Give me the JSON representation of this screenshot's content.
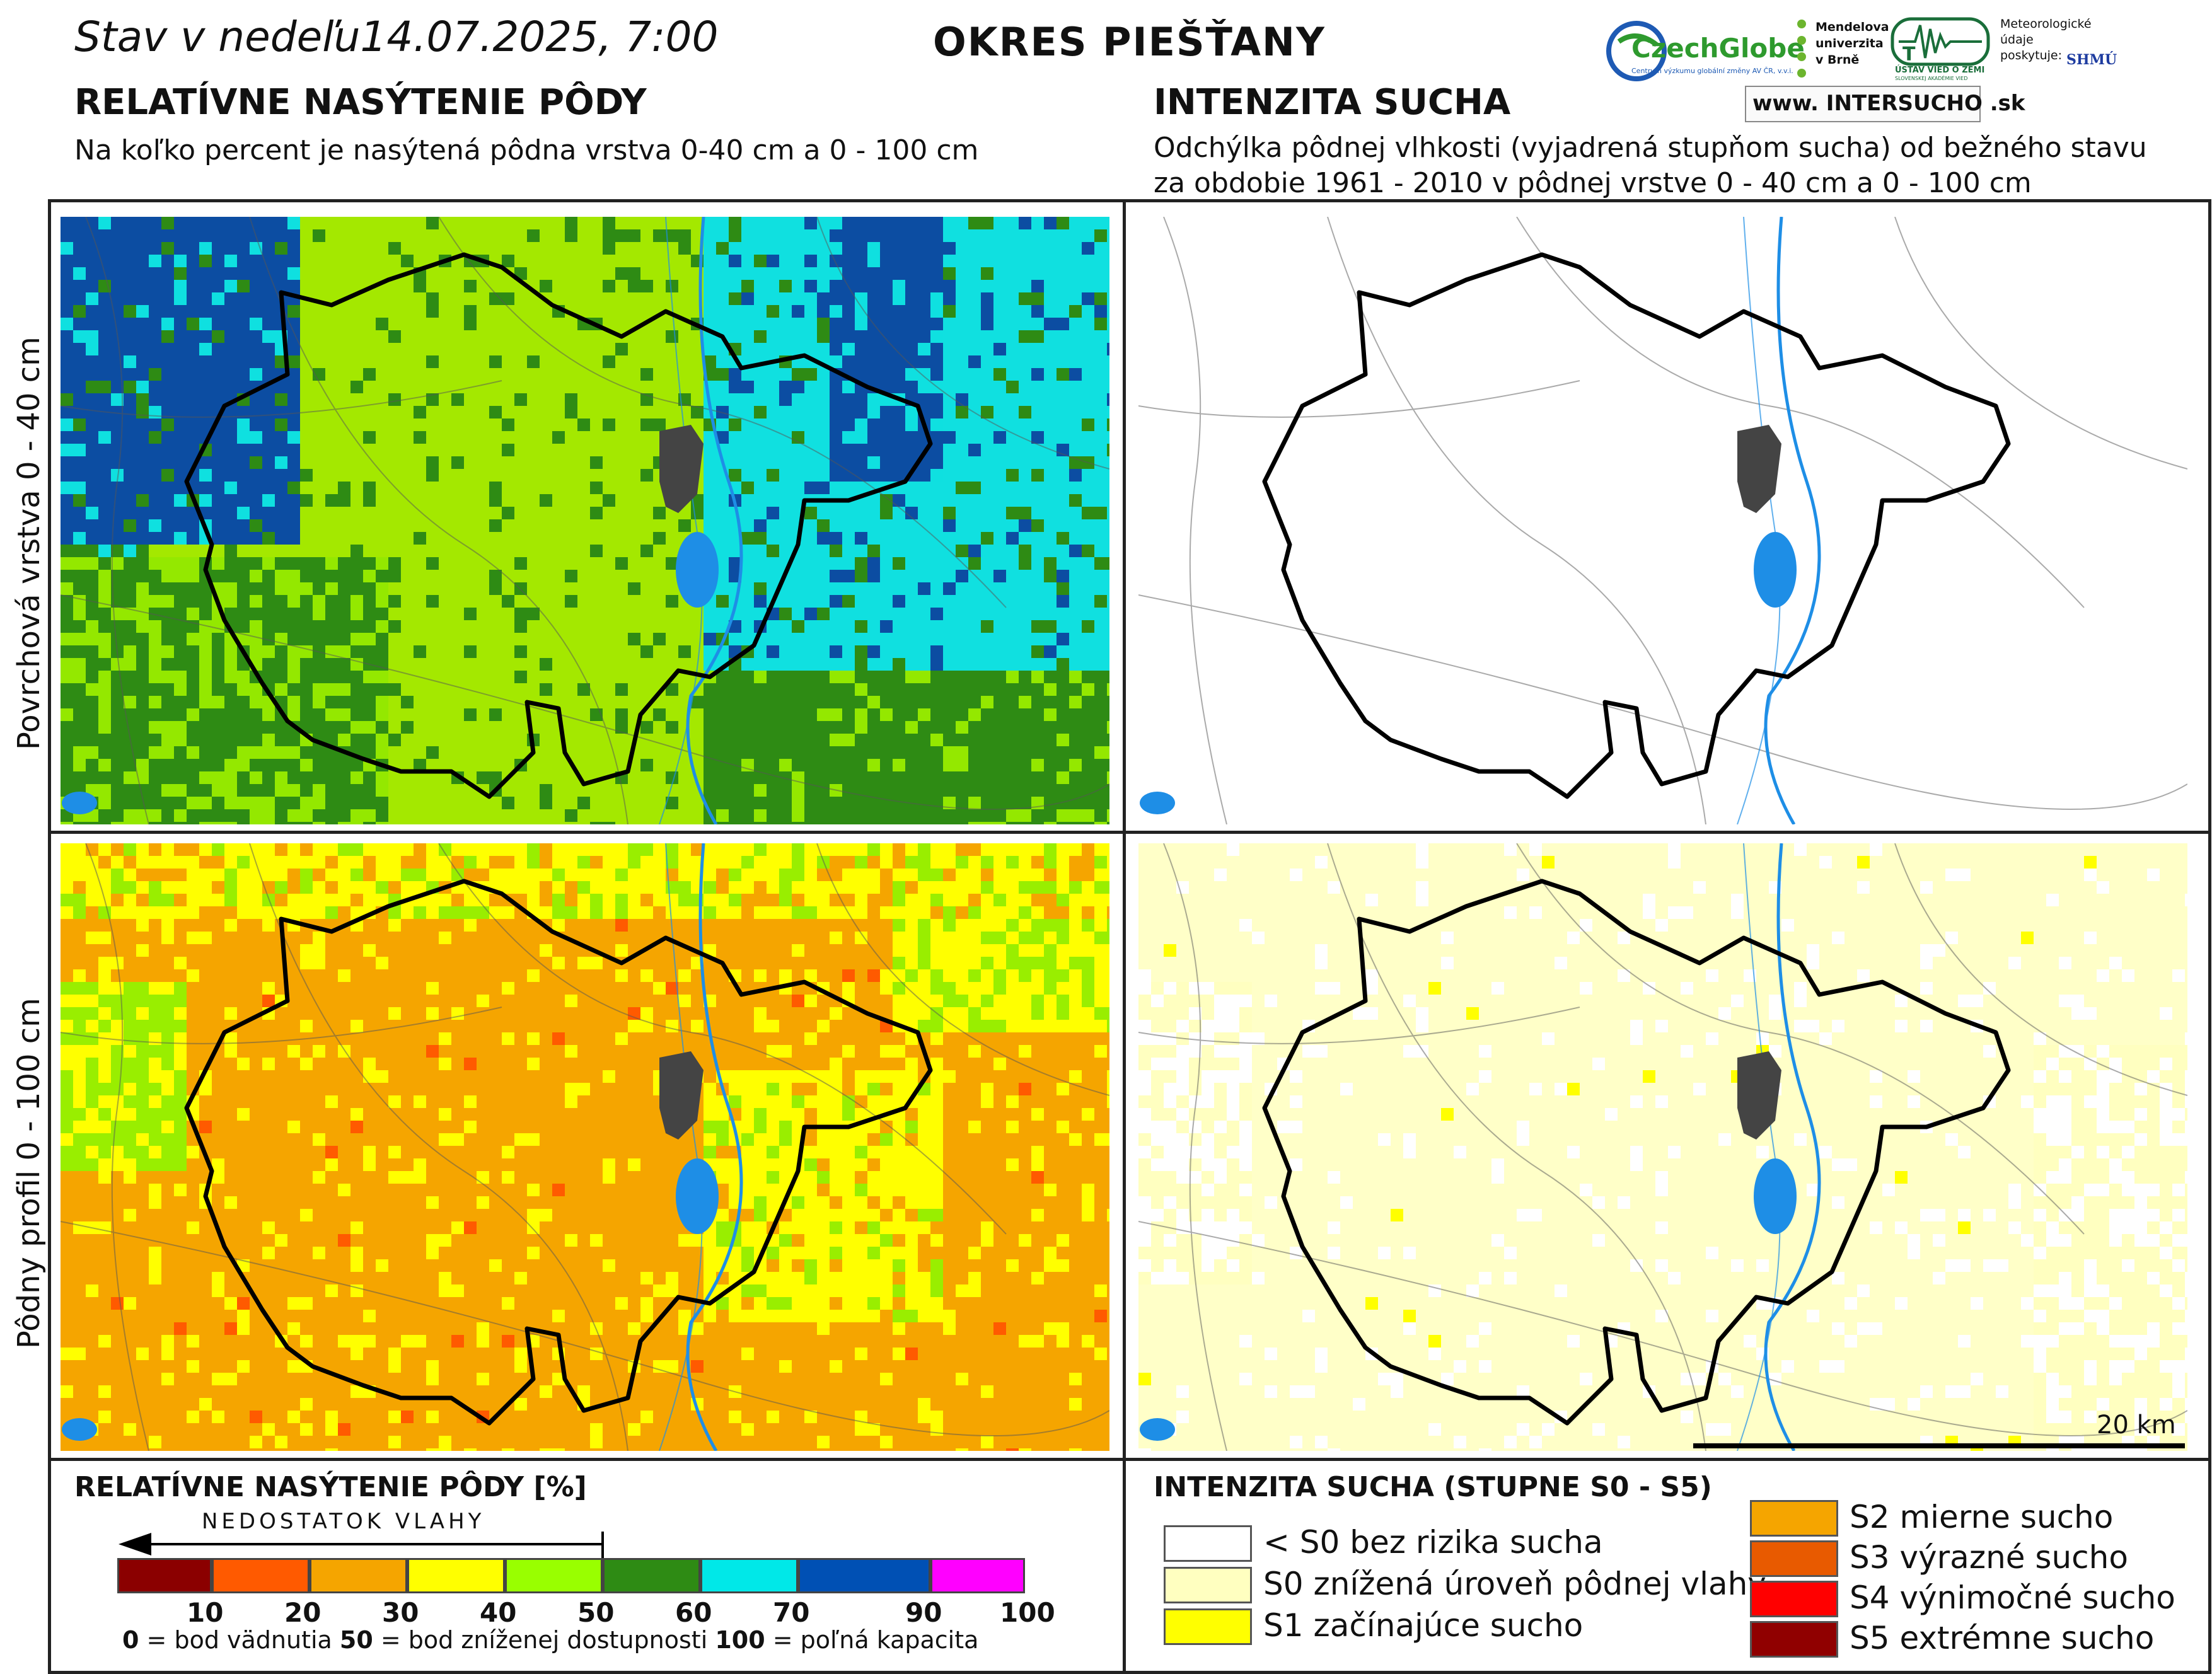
{
  "header": {
    "date_text": "Stav v nedeľu14.07.2025, 7:00",
    "region": "OKRES  PIEŠŤANY"
  },
  "logos": {
    "czechglobe": "CzechGlobe",
    "czechglobe_sub": "Centrum výzkumu globální změny AV ČR, v.v.i.",
    "mendel_1": "Mendelova",
    "mendel_2": "univerzita",
    "mendel_3": "v Brně",
    "uvz": "ÚSTAV VIED O ZEMI",
    "uvz_sub": "SLOVENSKEJ AKADÉMIE VIED",
    "meteo_1": "Meteorologické",
    "meteo_2": "údaje",
    "meteo_3": "poskytuje:",
    "shmu": "SHMÚ",
    "intersucho": "www. INTERSUCHO .sk"
  },
  "left_section": {
    "title": "RELATÍVNE NASÝTENIE PÔDY",
    "subtitle": "Na koľko percent je nasýtená pôdna vrstva 0-40 cm a 0 - 100 cm"
  },
  "right_section": {
    "title": "INTENZITA SUCHA",
    "subtitle_1": "Odchýlka pôdnej vlhkosti (vyjadrená stupňom sucha) od bežného stavu",
    "subtitle_2": "za obdobie 1961 - 2010 v pôdnej vrstve 0 - 40 cm a 0 - 100 cm"
  },
  "row_labels": {
    "top": "Povrchová vrstva 0 - 40 cm",
    "bottom": "Pôdny profil 0 - 100 cm"
  },
  "scale_bar": "20 km",
  "legend_left": {
    "title": "RELATÍVNE NASÝTENIE PÔDY [%]",
    "arrow_label": "NEDOSTATOK VLAHY",
    "colors": [
      "#8b0000",
      "#ff5a00",
      "#f5a500",
      "#ffff00",
      "#99ff00",
      "#2e8b14",
      "#00e8e8",
      "#0050b4",
      "#ff00ff"
    ],
    "ticks": [
      "10",
      "20",
      "30",
      "40",
      "50",
      "60",
      "70",
      "90",
      "100"
    ],
    "note_0_bold": "0",
    "note_0": " = bod vädnutia  ",
    "note_50_bold": "50",
    "note_50": " = bod zníženej dostupnosti  ",
    "note_100_bold": "100",
    "note_100": " = poľná kapacita"
  },
  "legend_right": {
    "title": "INTENZITA SUCHA (STUPNE S0 - S5)",
    "items": [
      {
        "label": "< S0 bez rizika sucha",
        "color": "#ffffff"
      },
      {
        "label": "S0 znížená úroveň pôdnej vlahy",
        "color": "#ffffc0"
      },
      {
        "label": "S1 začínajúce sucho",
        "color": "#ffff00"
      },
      {
        "label": "S2 mierne sucho",
        "color": "#f5a500"
      },
      {
        "label": "S3 výrazné sucho",
        "color": "#e85a00"
      },
      {
        "label": "S4 výnimočné sucho",
        "color": "#ff0000"
      },
      {
        "label": "S5 extrémne sucho",
        "color": "#900000"
      }
    ]
  }
}
